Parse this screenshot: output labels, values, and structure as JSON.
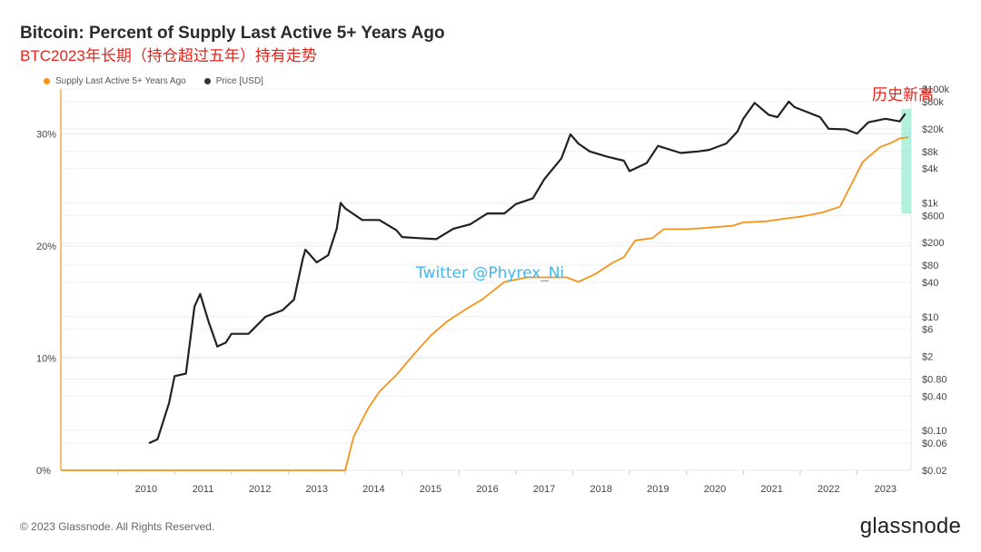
{
  "title": "Bitcoin: Percent of Supply Last Active 5+ Years Ago",
  "subtitle": "BTC2023年长期（持仓超过五年）持有走势",
  "footer": "© 2023 Glassnode. All Rights Reserved.",
  "brand": "glassnode",
  "legend": [
    {
      "label": "Supply Last Active 5+ Years Ago",
      "color": "#f7931a"
    },
    {
      "label": "Price [USD]",
      "color": "#333333"
    }
  ],
  "annotations": {
    "ath_label": "历史新高",
    "watermark": "Twitter @Phyrex_Ni"
  },
  "chart_data": {
    "type": "line",
    "title": "Bitcoin: Percent of Supply Last Active 5+ Years Ago",
    "x_range": [
      "2009-01-01",
      "2023-12-31"
    ],
    "x_ticks": [
      "2010",
      "2011",
      "2012",
      "2013",
      "2014",
      "2015",
      "2016",
      "2017",
      "2018",
      "2019",
      "2020",
      "2021",
      "2022",
      "2023"
    ],
    "left_axis": {
      "ticks": [
        "0%",
        "10%",
        "20%",
        "30%"
      ],
      "ylim": [
        0,
        0.34
      ]
    },
    "right_axis": {
      "scale": "log",
      "ylim": [
        0.02,
        100000
      ],
      "ticks": [
        "$0.02",
        "$0.06",
        "$0.10",
        "$0.40",
        "$0.80",
        "$2",
        "$6",
        "$10",
        "$40",
        "$80",
        "$200",
        "$600",
        "$1k",
        "$4k",
        "$8k",
        "$20k",
        "$60k",
        "$100k"
      ]
    },
    "grid": true,
    "legend_position": "top-left",
    "highlight": {
      "from": "2023-09",
      "to": "2023-12",
      "color": "#7fe8c8"
    },
    "series": [
      {
        "name": "Supply Last Active 5+ Years Ago",
        "axis": "left",
        "color": "#f7931a",
        "x": [
          2009.0,
          2014.0,
          2014.15,
          2014.4,
          2014.6,
          2014.9,
          2015.2,
          2015.5,
          2015.8,
          2016.1,
          2016.4,
          2016.6,
          2016.8,
          2017.2,
          2017.7,
          2017.9,
          2018.1,
          2018.4,
          2018.7,
          2018.9,
          2019.1,
          2019.4,
          2019.6,
          2020.0,
          2020.3,
          2020.8,
          2021.0,
          2021.4,
          2021.8,
          2022.0,
          2022.2,
          2022.4,
          2022.7,
          2022.9,
          2023.1,
          2023.4,
          2023.6,
          2023.75,
          2023.9
        ],
        "y": [
          0.0,
          0.0,
          0.03,
          0.055,
          0.07,
          0.085,
          0.103,
          0.12,
          0.133,
          0.143,
          0.152,
          0.16,
          0.168,
          0.172,
          0.172,
          0.172,
          0.168,
          0.175,
          0.185,
          0.19,
          0.205,
          0.207,
          0.215,
          0.215,
          0.216,
          0.218,
          0.221,
          0.222,
          0.225,
          0.226,
          0.228,
          0.23,
          0.235,
          0.255,
          0.275,
          0.288,
          0.292,
          0.296,
          0.297
        ]
      },
      {
        "name": "Price [USD]",
        "axis": "right",
        "color": "#222222",
        "x": [
          2010.55,
          2010.7,
          2010.9,
          2011.0,
          2011.2,
          2011.35,
          2011.45,
          2011.6,
          2011.75,
          2011.9,
          2012.0,
          2012.3,
          2012.6,
          2012.9,
          2013.1,
          2013.25,
          2013.3,
          2013.5,
          2013.7,
          2013.85,
          2013.92,
          2014.0,
          2014.3,
          2014.6,
          2014.9,
          2015.0,
          2015.3,
          2015.6,
          2015.9,
          2016.2,
          2016.5,
          2016.8,
          2017.0,
          2017.3,
          2017.5,
          2017.8,
          2017.96,
          2018.1,
          2018.3,
          2018.6,
          2018.9,
          2019.0,
          2019.3,
          2019.5,
          2019.9,
          2020.2,
          2020.4,
          2020.7,
          2020.9,
          2021.0,
          2021.2,
          2021.45,
          2021.6,
          2021.8,
          2021.9,
          2022.1,
          2022.35,
          2022.5,
          2022.8,
          2023.0,
          2023.2,
          2023.5,
          2023.75,
          2023.85
        ],
        "y": [
          0.06,
          0.07,
          0.3,
          0.9,
          1.0,
          15.0,
          25.0,
          8.0,
          3.0,
          3.5,
          5.0,
          5.0,
          10.0,
          13.0,
          20.0,
          100.0,
          150.0,
          90.0,
          120.0,
          350.0,
          1000.0,
          800.0,
          500.0,
          500.0,
          330.0,
          250.0,
          240.0,
          230.0,
          350.0,
          420.0,
          650.0,
          650.0,
          950.0,
          1200.0,
          2600.0,
          6000.0,
          16000.0,
          11000.0,
          8000.0,
          6500.0,
          5500.0,
          3600.0,
          5000.0,
          10000.0,
          7500.0,
          8000.0,
          8500.0,
          11000.0,
          18000.0,
          30000.0,
          57000.0,
          35000.0,
          32000.0,
          60000.0,
          48000.0,
          40000.0,
          32000.0,
          20000.0,
          19500.0,
          16500.0,
          26000.0,
          30000.0,
          27000.0,
          37000.0
        ]
      }
    ]
  }
}
